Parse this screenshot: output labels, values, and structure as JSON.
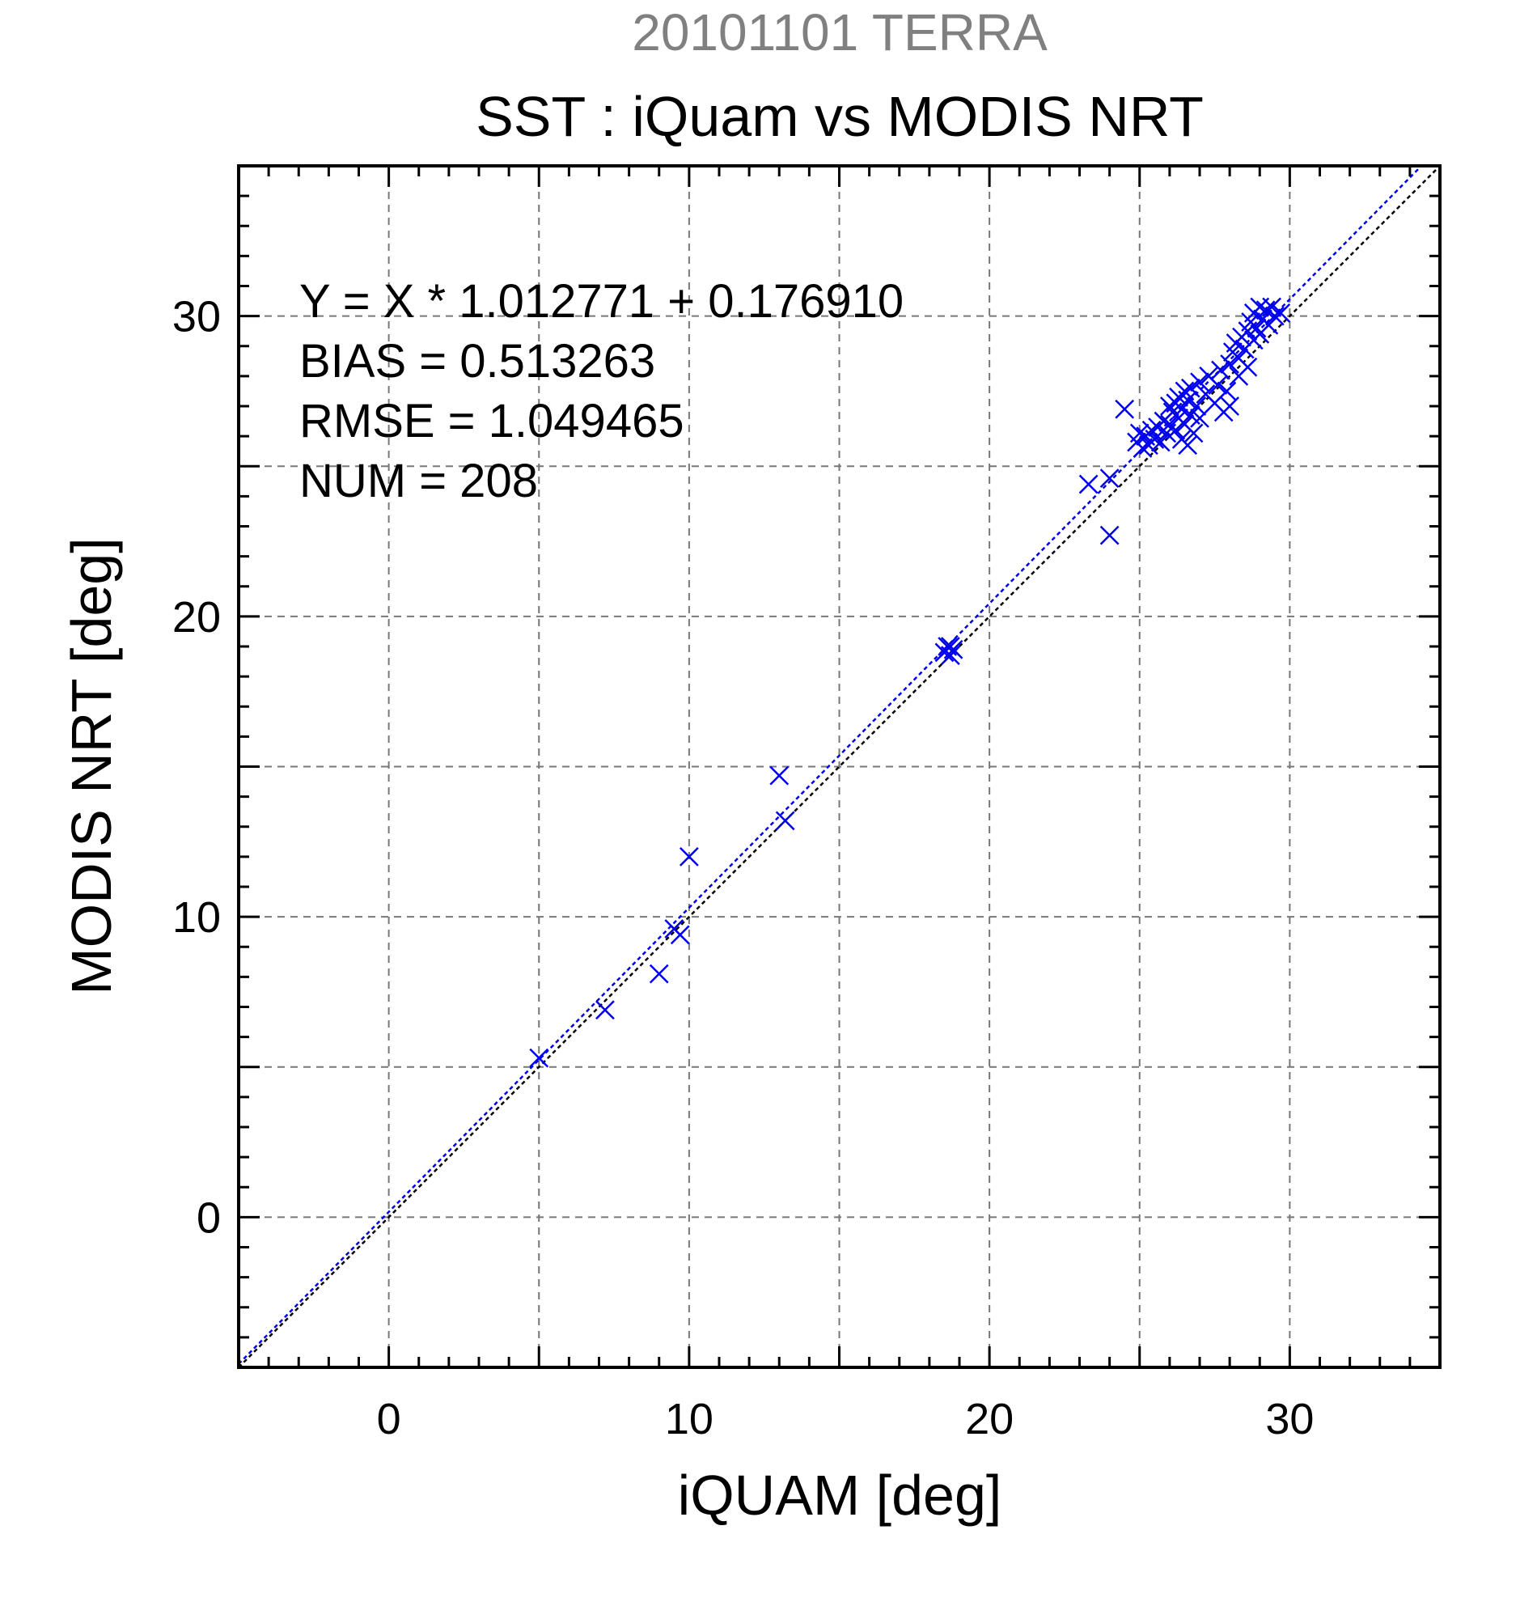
{
  "chart_data": {
    "type": "scatter",
    "supertitle": "20101101 TERRA",
    "title": "SST : iQuam vs MODIS NRT",
    "xlabel": "iQUAM [deg]",
    "ylabel": "MODIS NRT [deg]",
    "xlim": [
      -5,
      35
    ],
    "ylim": [
      -5,
      35
    ],
    "xticks": [
      0,
      10,
      20,
      30
    ],
    "yticks": [
      0,
      10,
      20,
      30
    ],
    "grid_step": 5,
    "minor_step": 1,
    "grid": true,
    "annotations": [
      "Y = X * 1.012771 + 0.176910",
      "BIAS = 0.513263",
      "RMSE = 1.049465",
      "NUM = 208"
    ],
    "fit": {
      "slope": 1.012771,
      "intercept": 0.17691
    },
    "marker": "x",
    "colors": {
      "points": "#0000ee",
      "fit_line": "#0000ee",
      "identity_line": "#000000",
      "grid": "#777777",
      "supertitle": "#808080"
    },
    "series": [
      {
        "values": [
          [
            5.0,
            5.3
          ],
          [
            7.2,
            6.9
          ],
          [
            9.0,
            8.1
          ],
          [
            9.5,
            9.6
          ],
          [
            9.7,
            9.4
          ],
          [
            10.0,
            12.0
          ],
          [
            13.0,
            14.7
          ],
          [
            13.2,
            13.2
          ],
          [
            18.5,
            18.8
          ],
          [
            18.6,
            19.0
          ],
          [
            18.7,
            18.7
          ],
          [
            18.7,
            19.0
          ],
          [
            18.8,
            18.9
          ],
          [
            23.3,
            24.4
          ],
          [
            24.0,
            24.6
          ],
          [
            24.0,
            22.7
          ],
          [
            24.5,
            26.9
          ],
          [
            24.9,
            25.8
          ],
          [
            25.0,
            26.1
          ],
          [
            25.1,
            25.6
          ],
          [
            25.2,
            26.0
          ],
          [
            25.3,
            25.7
          ],
          [
            25.4,
            26.2
          ],
          [
            25.5,
            25.9
          ],
          [
            25.6,
            26.3
          ],
          [
            25.7,
            25.8
          ],
          [
            25.8,
            26.5
          ],
          [
            25.9,
            26.1
          ],
          [
            26.0,
            27.0
          ],
          [
            26.0,
            26.4
          ],
          [
            26.1,
            26.8
          ],
          [
            26.2,
            27.1
          ],
          [
            26.2,
            26.2
          ],
          [
            26.3,
            26.6
          ],
          [
            26.3,
            27.3
          ],
          [
            26.4,
            25.9
          ],
          [
            26.4,
            26.9
          ],
          [
            26.5,
            27.5
          ],
          [
            26.5,
            26.4
          ],
          [
            26.6,
            27.2
          ],
          [
            26.6,
            25.7
          ],
          [
            26.7,
            26.7
          ],
          [
            26.7,
            27.6
          ],
          [
            26.8,
            26.1
          ],
          [
            26.9,
            27.0
          ],
          [
            27.0,
            27.8
          ],
          [
            27.0,
            26.6
          ],
          [
            27.2,
            27.4
          ],
          [
            27.3,
            28.0
          ],
          [
            27.5,
            27.1
          ],
          [
            27.6,
            27.7
          ],
          [
            27.7,
            28.2
          ],
          [
            27.8,
            26.8
          ],
          [
            27.9,
            27.5
          ],
          [
            28.0,
            27.0
          ],
          [
            28.0,
            28.4
          ],
          [
            28.1,
            28.8
          ],
          [
            28.2,
            29.1
          ],
          [
            28.3,
            28.0
          ],
          [
            28.3,
            28.6
          ],
          [
            28.4,
            29.3
          ],
          [
            28.5,
            28.9
          ],
          [
            28.6,
            29.5
          ],
          [
            28.6,
            28.3
          ],
          [
            28.7,
            29.8
          ],
          [
            28.8,
            29.2
          ],
          [
            28.8,
            30.1
          ],
          [
            28.9,
            29.6
          ],
          [
            29.0,
            30.3
          ],
          [
            29.0,
            29.4
          ],
          [
            29.1,
            29.9
          ],
          [
            29.2,
            30.2
          ],
          [
            29.3,
            29.7
          ],
          [
            29.4,
            30.3
          ],
          [
            29.5,
            30.0
          ],
          [
            29.7,
            30.1
          ]
        ]
      }
    ]
  }
}
